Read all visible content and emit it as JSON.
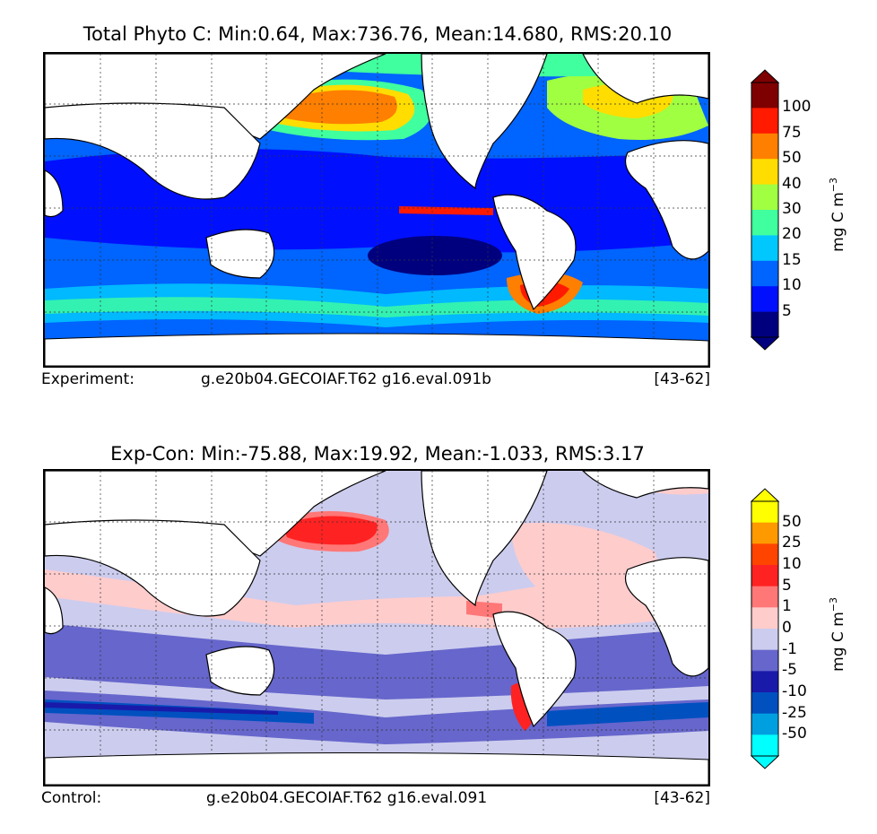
{
  "panels": [
    {
      "title": "Total Phyto C: Min:0.64, Max:736.76, Mean:14.680, RMS:20.10",
      "footer": {
        "label": "Experiment:",
        "case": "g.e20b04.GECOIAF.T62 g16.eval.091b",
        "years": "[43-62]"
      },
      "colorbar": {
        "units": "mg C m",
        "units_exp": "−3",
        "ticks": [
          "100",
          "75",
          "50",
          "40",
          "30",
          "20",
          "15",
          "10",
          "5"
        ],
        "colors": [
          "#7f0000",
          "#ff1a00",
          "#ff7f00",
          "#ffdd00",
          "#a0ff40",
          "#40ff9e",
          "#00c8ff",
          "#0064ff",
          "#0010ff",
          "#00007f"
        ],
        "over_color": "#7f0000",
        "under_color": "#00007f"
      }
    },
    {
      "title": "Exp-Con: Min:-75.88, Max:19.92, Mean:-1.033, RMS:3.17",
      "footer": {
        "label": "Control:",
        "case": "g.e20b04.GECOIAF.T62 g16.eval.091",
        "years": "[43-62]"
      },
      "colorbar": {
        "units": "mg C m",
        "units_exp": "−3",
        "ticks": [
          "50",
          "25",
          "10",
          "5",
          "1",
          "0",
          "-1",
          "-5",
          "-10",
          "-25",
          "-50"
        ],
        "colors": [
          "#ffff00",
          "#ff9900",
          "#ff4400",
          "#ff2222",
          "#ff7777",
          "#ffcccc",
          "#ccccee",
          "#6666cc",
          "#1a1aaa",
          "#0050c0",
          "#00a0e0",
          "#00ffff"
        ],
        "over_color": "#ffff00",
        "under_color": "#00ffff"
      }
    }
  ]
}
